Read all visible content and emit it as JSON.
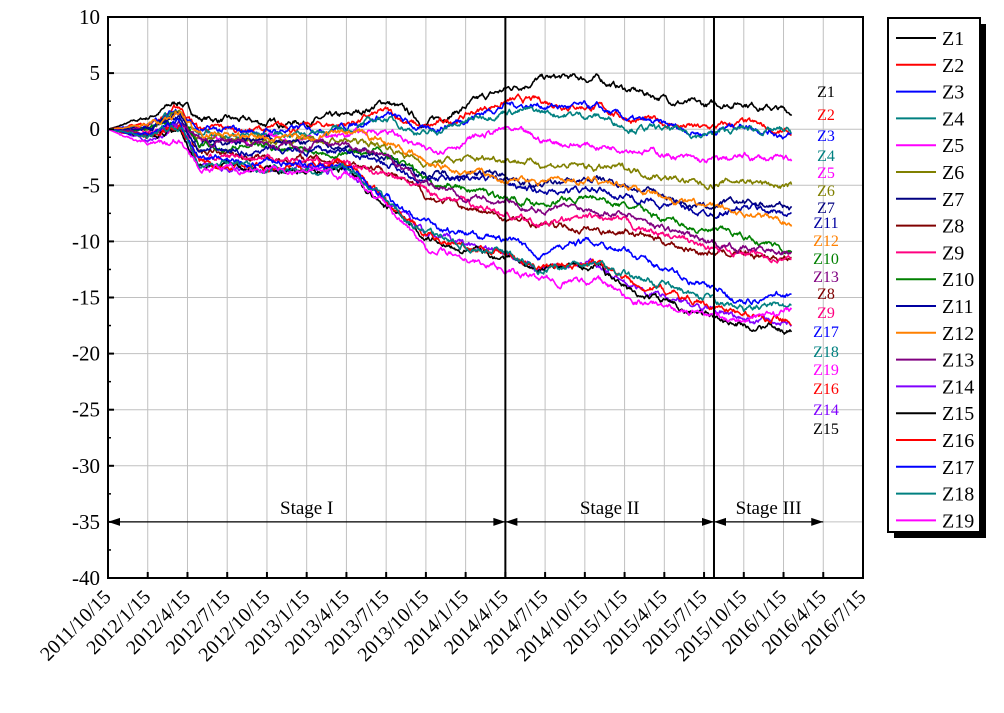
{
  "chart_data": {
    "type": "line",
    "title": "",
    "xlabel": "",
    "ylabel": "",
    "ylim": [
      -40,
      10
    ],
    "yticks": [
      10,
      5,
      0,
      -5,
      -10,
      -15,
      -20,
      -25,
      -30,
      -35,
      -40
    ],
    "xtick_labels": [
      "2011/10/15",
      "2012/1/15",
      "2012/4/15",
      "2012/7/15",
      "2012/10/15",
      "2013/1/15",
      "2013/4/15",
      "2013/7/15",
      "2013/10/15",
      "2014/1/15",
      "2014/4/15",
      "2014/7/15",
      "2014/10/15",
      "2015/1/15",
      "2015/4/15",
      "2015/7/15",
      "2015/10/15",
      "2016/1/15",
      "2016/4/15",
      "2016/7/15"
    ],
    "x_unit": "quarters since 2011/10/15",
    "grid": true,
    "legend_placement": "outside-right",
    "stages": [
      {
        "label": "Stage I",
        "start": 0,
        "end": 10
      },
      {
        "label": "Stage II",
        "start": 10,
        "end": 15.25
      },
      {
        "label": "Stage III",
        "start": 15.25,
        "end": 18
      }
    ],
    "stage_arrow_y": -35,
    "x": [
      0,
      1,
      1.8,
      2.3,
      4,
      6,
      7,
      8,
      10,
      10.8,
      12.3,
      13.1,
      15,
      16,
      17.2
    ],
    "series": [
      {
        "name": "Z1",
        "color": "#000000",
        "values": [
          0,
          1,
          2.5,
          1,
          0.5,
          1,
          2.5,
          0.5,
          3.5,
          4.5,
          4.5,
          3.5,
          2,
          2.5,
          1.5
        ]
      },
      {
        "name": "Z2",
        "color": "#ff0000",
        "values": [
          0,
          0.5,
          2,
          0,
          0,
          0.5,
          1.5,
          0,
          2.5,
          2.5,
          2,
          1,
          0,
          0.5,
          -0.5
        ]
      },
      {
        "name": "Z3",
        "color": "#0000ff",
        "values": [
          0,
          0.3,
          1.8,
          -0.2,
          -0.2,
          0.3,
          1.3,
          -0.2,
          2.2,
          2.2,
          1.8,
          0.8,
          -0.3,
          0.5,
          -0.6
        ]
      },
      {
        "name": "Z4",
        "color": "#008080",
        "values": [
          0,
          0,
          1.5,
          -0.5,
          -0.5,
          0,
          1,
          -0.5,
          1.8,
          1.5,
          1.2,
          0.3,
          -0.5,
          0,
          -0.3
        ]
      },
      {
        "name": "Z5",
        "color": "#ff00ff",
        "values": [
          0,
          -0.5,
          0.5,
          -1,
          -1,
          -0.5,
          0,
          -2,
          0,
          -1,
          -1.5,
          -1.5,
          -3,
          -2.5,
          -2.8
        ]
      },
      {
        "name": "Z6",
        "color": "#808000",
        "values": [
          0,
          0,
          1.5,
          -1,
          -1,
          -1,
          -1.5,
          -3,
          -2.5,
          -3,
          -3.5,
          -3.5,
          -5,
          -4.5,
          -5.2
        ]
      },
      {
        "name": "Z7",
        "color": "#000080",
        "values": [
          0,
          0,
          1,
          -1.5,
          -1,
          -1.5,
          -2.5,
          -4,
          -4,
          -5,
          -4.5,
          -5,
          -7,
          -6.5,
          -7
        ]
      },
      {
        "name": "Z8",
        "color": "#800000",
        "values": [
          0,
          -0.5,
          0.3,
          -2,
          -2.5,
          -2.8,
          -3.5,
          -6,
          -8,
          -8.5,
          -9,
          -9,
          -11,
          -11,
          -11.5
        ]
      },
      {
        "name": "Z9",
        "color": "#ff0080",
        "values": [
          0,
          -0.3,
          0.3,
          -2.5,
          -2.5,
          -3,
          -4,
          -5.5,
          -7.5,
          -8.5,
          -8,
          -8.5,
          -10.5,
          -11,
          -11.6
        ]
      },
      {
        "name": "Z10",
        "color": "#008000",
        "values": [
          0,
          0,
          0.8,
          -1.5,
          -1.5,
          -2,
          -2,
          -4.5,
          -6,
          -6.5,
          -6,
          -7,
          -9,
          -9.5,
          -10.8
        ]
      },
      {
        "name": "Z11",
        "color": "#0000a0",
        "values": [
          0,
          0,
          1,
          -2,
          -2,
          -2,
          -3,
          -4.5,
          -4.5,
          -5.5,
          -5.5,
          -6,
          -7.5,
          -7,
          -7.5
        ]
      },
      {
        "name": "Z12",
        "color": "#ff8000",
        "values": [
          0,
          0.3,
          1.5,
          -0.5,
          -0.8,
          -0.5,
          -1,
          -3,
          -4.5,
          -4.5,
          -4.5,
          -5,
          -7,
          -7.5,
          -8.3
        ]
      },
      {
        "name": "Z13",
        "color": "#800080",
        "values": [
          0,
          -0.3,
          0.5,
          -1,
          -1.2,
          -1.5,
          -2.5,
          -5,
          -6.5,
          -7,
          -7,
          -7.5,
          -10,
          -10.5,
          -11
        ]
      },
      {
        "name": "Z14",
        "color": "#8000ff",
        "values": [
          0,
          -0.8,
          0,
          -3,
          -3.5,
          -3.5,
          -6.5,
          -9.5,
          -11,
          -12.5,
          -12,
          -14,
          -16,
          -17,
          -17.3
        ]
      },
      {
        "name": "Z15",
        "color": "#000000",
        "values": [
          0,
          -0.8,
          0,
          -3,
          -3.5,
          -3.5,
          -7,
          -9.5,
          -11.5,
          -12.5,
          -12,
          -14.5,
          -16.5,
          -17.5,
          -18
        ]
      },
      {
        "name": "Z16",
        "color": "#ff0000",
        "values": [
          0,
          -0.8,
          0.3,
          -3,
          -3.5,
          -3,
          -6.5,
          -9.5,
          -11,
          -12.5,
          -12,
          -13.5,
          -15.5,
          -16.5,
          -16.8
        ]
      },
      {
        "name": "Z17",
        "color": "#0000ff",
        "values": [
          0,
          -0.5,
          0.5,
          -2.5,
          -3,
          -3.5,
          -6,
          -8.5,
          -10,
          -11,
          -10,
          -11,
          -14,
          -15.5,
          -14.6
        ]
      },
      {
        "name": "Z18",
        "color": "#008080",
        "values": [
          0,
          -0.8,
          0.5,
          -3,
          -3.5,
          -3.5,
          -6.5,
          -9.5,
          -11,
          -12.5,
          -12,
          -13,
          -15,
          -16,
          -15.8
        ]
      },
      {
        "name": "Z19",
        "color": "#ff00ff",
        "values": [
          0,
          -1.5,
          -1,
          -3.5,
          -3.5,
          -4,
          -7,
          -10.5,
          -12.5,
          -13.5,
          -13.5,
          -15,
          -16.5,
          -17,
          -16.5
        ]
      }
    ],
    "end_label_order": [
      "Z1",
      "Z2",
      "Z3",
      "Z4",
      "Z5",
      "Z6",
      "Z7",
      "Z11",
      "Z12",
      "Z10",
      "Z13",
      "Z8",
      "Z9",
      "Z17",
      "Z18",
      "Z19",
      "Z16",
      "Z14",
      "Z15"
    ]
  }
}
